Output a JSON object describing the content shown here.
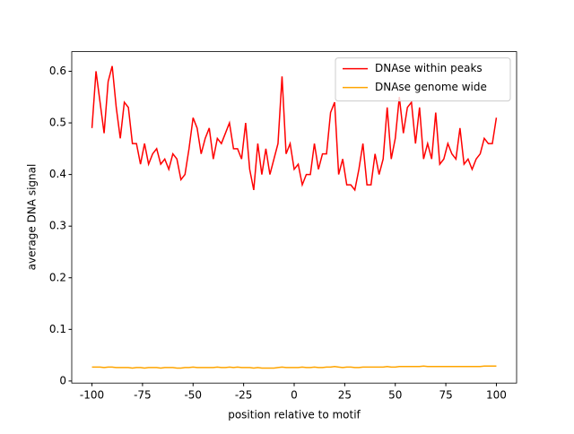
{
  "chart_data": {
    "type": "line",
    "xlabel": "position relative to motif",
    "ylabel": "average DNA signal",
    "x": [
      -100,
      -98,
      -96,
      -94,
      -92,
      -90,
      -88,
      -86,
      -84,
      -82,
      -80,
      -78,
      -76,
      -74,
      -72,
      -70,
      -68,
      -66,
      -64,
      -62,
      -60,
      -58,
      -56,
      -54,
      -52,
      -50,
      -48,
      -46,
      -44,
      -42,
      -40,
      -38,
      -36,
      -34,
      -32,
      -30,
      -28,
      -26,
      -24,
      -22,
      -20,
      -18,
      -16,
      -14,
      -12,
      -10,
      -8,
      -6,
      -4,
      -2,
      0,
      2,
      4,
      6,
      8,
      10,
      12,
      14,
      16,
      18,
      20,
      22,
      24,
      26,
      28,
      30,
      32,
      34,
      36,
      38,
      40,
      42,
      44,
      46,
      48,
      50,
      52,
      54,
      56,
      58,
      60,
      62,
      64,
      66,
      68,
      70,
      72,
      74,
      76,
      78,
      80,
      82,
      84,
      86,
      88,
      90,
      92,
      94,
      96,
      98,
      100
    ],
    "series": [
      {
        "name": "DNAse within peaks",
        "color": "#ff0000",
        "values": [
          0.49,
          0.6,
          0.54,
          0.48,
          0.58,
          0.61,
          0.53,
          0.47,
          0.54,
          0.53,
          0.46,
          0.46,
          0.42,
          0.46,
          0.42,
          0.44,
          0.45,
          0.42,
          0.43,
          0.41,
          0.44,
          0.43,
          0.39,
          0.4,
          0.45,
          0.51,
          0.49,
          0.44,
          0.47,
          0.49,
          0.43,
          0.47,
          0.46,
          0.48,
          0.5,
          0.45,
          0.45,
          0.43,
          0.5,
          0.41,
          0.37,
          0.46,
          0.4,
          0.45,
          0.4,
          0.43,
          0.46,
          0.59,
          0.44,
          0.46,
          0.41,
          0.42,
          0.38,
          0.4,
          0.4,
          0.46,
          0.41,
          0.44,
          0.44,
          0.52,
          0.54,
          0.4,
          0.43,
          0.38,
          0.38,
          0.37,
          0.41,
          0.46,
          0.38,
          0.38,
          0.44,
          0.4,
          0.43,
          0.53,
          0.43,
          0.47,
          0.55,
          0.48,
          0.53,
          0.54,
          0.46,
          0.53,
          0.43,
          0.46,
          0.43,
          0.52,
          0.42,
          0.43,
          0.46,
          0.44,
          0.43,
          0.49,
          0.42,
          0.43,
          0.41,
          0.43,
          0.44,
          0.47,
          0.46,
          0.46,
          0.51
        ]
      },
      {
        "name": "DNAse genome wide",
        "color": "#ffa500",
        "values": [
          0.027,
          0.027,
          0.027,
          0.026,
          0.027,
          0.027,
          0.026,
          0.026,
          0.026,
          0.026,
          0.025,
          0.026,
          0.026,
          0.025,
          0.026,
          0.026,
          0.026,
          0.025,
          0.026,
          0.026,
          0.026,
          0.025,
          0.025,
          0.026,
          0.026,
          0.027,
          0.026,
          0.026,
          0.026,
          0.026,
          0.026,
          0.027,
          0.026,
          0.026,
          0.027,
          0.026,
          0.027,
          0.026,
          0.026,
          0.026,
          0.025,
          0.026,
          0.025,
          0.025,
          0.025,
          0.025,
          0.026,
          0.027,
          0.026,
          0.026,
          0.026,
          0.026,
          0.027,
          0.026,
          0.026,
          0.027,
          0.026,
          0.026,
          0.027,
          0.027,
          0.028,
          0.027,
          0.026,
          0.027,
          0.027,
          0.026,
          0.026,
          0.027,
          0.027,
          0.027,
          0.027,
          0.027,
          0.027,
          0.028,
          0.027,
          0.027,
          0.028,
          0.028,
          0.028,
          0.028,
          0.028,
          0.028,
          0.029,
          0.028,
          0.028,
          0.028,
          0.028,
          0.028,
          0.028,
          0.028,
          0.028,
          0.028,
          0.028,
          0.028,
          0.028,
          0.028,
          0.028,
          0.029,
          0.029,
          0.029,
          0.029
        ]
      }
    ],
    "xlim": [
      -110,
      110
    ],
    "xticks": [
      -100,
      -75,
      -50,
      -25,
      0,
      25,
      50,
      75,
      100
    ],
    "ylim": [
      -0.004,
      0.638
    ],
    "yticks": [
      0.0,
      0.1,
      0.2,
      0.3,
      0.4,
      0.5,
      0.6
    ],
    "legend": "upper right"
  }
}
